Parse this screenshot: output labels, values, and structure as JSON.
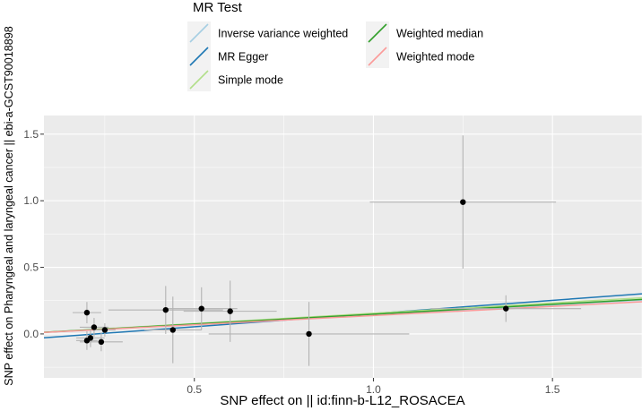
{
  "chart_data": {
    "type": "scatter",
    "xlabel": "SNP effect on  || id:finn-b-L12_ROSACEA",
    "ylabel": "SNP effect on Pharyngeal and laryngeal cancer || ebi-a-GCST90018898",
    "xlim": [
      0.08,
      1.75
    ],
    "ylim": [
      -0.33,
      1.64
    ],
    "x_ticks": [
      0.5,
      1.0,
      1.5
    ],
    "x_tick_labels": [
      "0.5",
      "1.0",
      "1.5"
    ],
    "y_ticks": [
      0.0,
      0.5,
      1.0,
      1.5
    ],
    "y_tick_labels": [
      "0.0",
      "0.5",
      "1.0",
      "1.5"
    ],
    "grid": true,
    "legend": {
      "title": "MR Test",
      "position": "top",
      "entries": [
        {
          "label": "Inverse variance weighted",
          "color": "#a6cee3"
        },
        {
          "label": "Weighted median",
          "color": "#33a02c"
        },
        {
          "label": "MR Egger",
          "color": "#1f78b4"
        },
        {
          "label": "Weighted mode",
          "color": "#fb9a99"
        },
        {
          "label": "Simple mode",
          "color": "#b2df8a"
        }
      ]
    },
    "points": [
      {
        "x": 0.2,
        "y": 0.16,
        "x_err": 0.04,
        "y_err": 0.08
      },
      {
        "x": 0.22,
        "y": 0.05,
        "x_err": 0.04,
        "y_err": 0.07
      },
      {
        "x": 0.21,
        "y": -0.03,
        "x_err": 0.04,
        "y_err": 0.07
      },
      {
        "x": 0.2,
        "y": -0.05,
        "x_err": 0.03,
        "y_err": 0.07
      },
      {
        "x": 0.24,
        "y": -0.06,
        "x_err": 0.06,
        "y_err": 0.07
      },
      {
        "x": 0.25,
        "y": 0.03,
        "x_err": 0.03,
        "y_err": 0.05
      },
      {
        "x": 0.42,
        "y": 0.18,
        "x_err": 0.16,
        "y_err": 0.18
      },
      {
        "x": 0.44,
        "y": 0.03,
        "x_err": 0.08,
        "y_err": 0.25
      },
      {
        "x": 0.52,
        "y": 0.19,
        "x_err": 0.1,
        "y_err": 0.16
      },
      {
        "x": 0.6,
        "y": 0.17,
        "x_err": 0.13,
        "y_err": 0.23
      },
      {
        "x": 0.82,
        "y": 0.0,
        "x_err": 0.28,
        "y_err": 0.24
      },
      {
        "x": 1.25,
        "y": 0.99,
        "x_err": 0.26,
        "y_err": 0.5
      },
      {
        "x": 1.37,
        "y": 0.19,
        "x_err": 0.21,
        "y_err": 0.1
      }
    ],
    "lines": [
      {
        "name": "Inverse variance weighted",
        "color": "#a6cee3",
        "intercept": 0.0,
        "slope": 0.145
      },
      {
        "name": "MR Egger",
        "color": "#1f78b4",
        "intercept": -0.045,
        "slope": 0.198
      },
      {
        "name": "Simple mode",
        "color": "#b2df8a",
        "intercept": 0.0,
        "slope": 0.155
      },
      {
        "name": "Weighted median",
        "color": "#33a02c",
        "intercept": 0.0,
        "slope": 0.148
      },
      {
        "name": "Weighted mode",
        "color": "#fb9a99",
        "intercept": 0.0,
        "slope": 0.138
      }
    ]
  }
}
